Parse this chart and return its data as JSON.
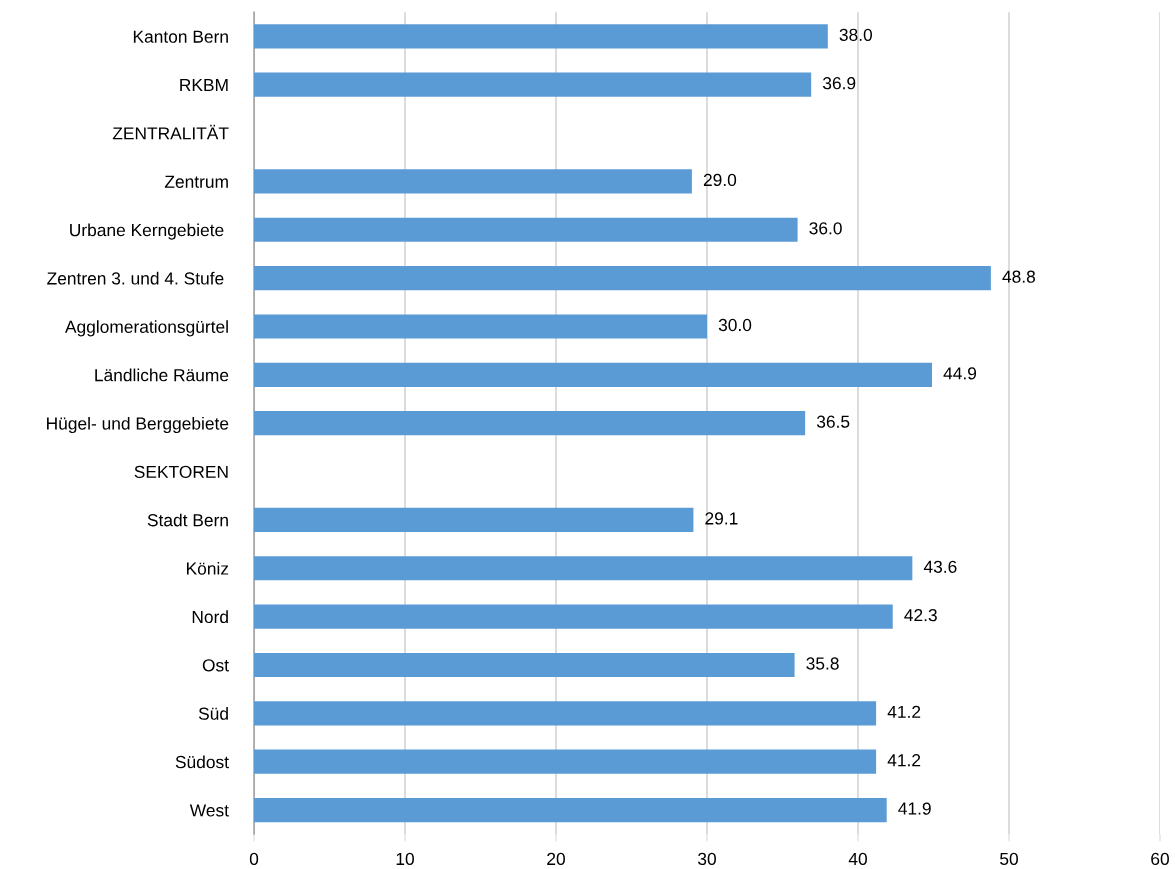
{
  "chart_data": {
    "type": "bar",
    "orientation": "horizontal",
    "categories": [
      "Kanton Bern",
      "RKBM",
      "ZENTRALITÄT",
      "Zentrum",
      "Urbane Kerngebiete ",
      "Zentren 3. und 4. Stufe ",
      "Agglomerationsgürtel",
      "Ländliche Räume",
      "Hügel- und Berggebiete",
      "SEKTOREN",
      "Stadt Bern",
      "Köniz",
      "Nord",
      "Ost",
      "Süd",
      "Südost",
      "West"
    ],
    "values": [
      38.0,
      36.9,
      null,
      29.0,
      36.0,
      48.8,
      30.0,
      44.9,
      36.5,
      null,
      29.1,
      43.6,
      42.3,
      35.8,
      41.2,
      41.2,
      41.9
    ],
    "value_labels": [
      "38.0",
      "36.9",
      null,
      "29.0",
      "36.0",
      "48.8",
      "30.0",
      "44.9",
      "36.5",
      null,
      "29.1",
      "43.6",
      "42.3",
      "35.8",
      "41.2",
      "41.2",
      "41.9"
    ],
    "color": "#5b9bd5",
    "xlim": [
      0,
      60
    ],
    "xticks": [
      0,
      10,
      20,
      30,
      40,
      50,
      60
    ],
    "grid": "x"
  }
}
